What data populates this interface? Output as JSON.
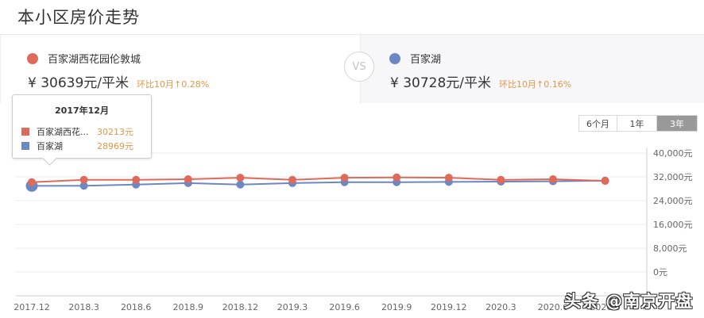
{
  "header": {
    "title": "本小区房价走势"
  },
  "compare": {
    "left": {
      "name": "百家湖西花园伦敦城",
      "color": "#e06a5a",
      "price": "¥ 30639元/平米",
      "change": "环比10月↑0.28%"
    },
    "vs_label": "VS",
    "right": {
      "name": "百家湖",
      "color": "#6c88c4",
      "price": "¥ 30728元/平米",
      "change": "环比10月↑0.16%"
    }
  },
  "range_tabs": [
    {
      "label": "6个月",
      "active": false
    },
    {
      "label": "1年",
      "active": false
    },
    {
      "label": "3年",
      "active": true
    }
  ],
  "tooltip": {
    "title": "2017年12月",
    "rows": [
      {
        "name": "百家湖西花...",
        "value": "30213元",
        "color": "#e06a5a"
      },
      {
        "name": "百家湖",
        "value": "28969元",
        "color": "#6c88c4"
      }
    ]
  },
  "watermark": "头条 @南京开盘",
  "chart_data": {
    "type": "line",
    "title": "本小区房价走势",
    "categories": [
      "2017.12",
      "2018.3",
      "2018.6",
      "2018.9",
      "2018.12",
      "2019.3",
      "2019.6",
      "2019.9",
      "2019.12",
      "2020.3",
      "2020.6",
      "2020.9"
    ],
    "series": [
      {
        "name": "百家湖西花园伦敦城",
        "color": "#e06a5a",
        "values": [
          30213,
          31000,
          31000,
          31200,
          31700,
          31000,
          31700,
          31800,
          31700,
          31000,
          31200,
          30639
        ]
      },
      {
        "name": "百家湖",
        "color": "#6c88c4",
        "values": [
          28969,
          29000,
          29400,
          29900,
          29400,
          29900,
          30200,
          30200,
          30300,
          30400,
          30500,
          30728
        ]
      }
    ],
    "y_ticks": [
      "40,000元",
      "32,000元",
      "24,000元",
      "16,000元",
      "8,000元",
      "0元"
    ],
    "y_tick_values": [
      40000,
      32000,
      24000,
      16000,
      8000,
      0
    ],
    "ylim": [
      0,
      40000
    ],
    "xlabel": "",
    "ylabel": "",
    "grid": true,
    "y_axis_position": "right",
    "highlighted_index": 0
  }
}
